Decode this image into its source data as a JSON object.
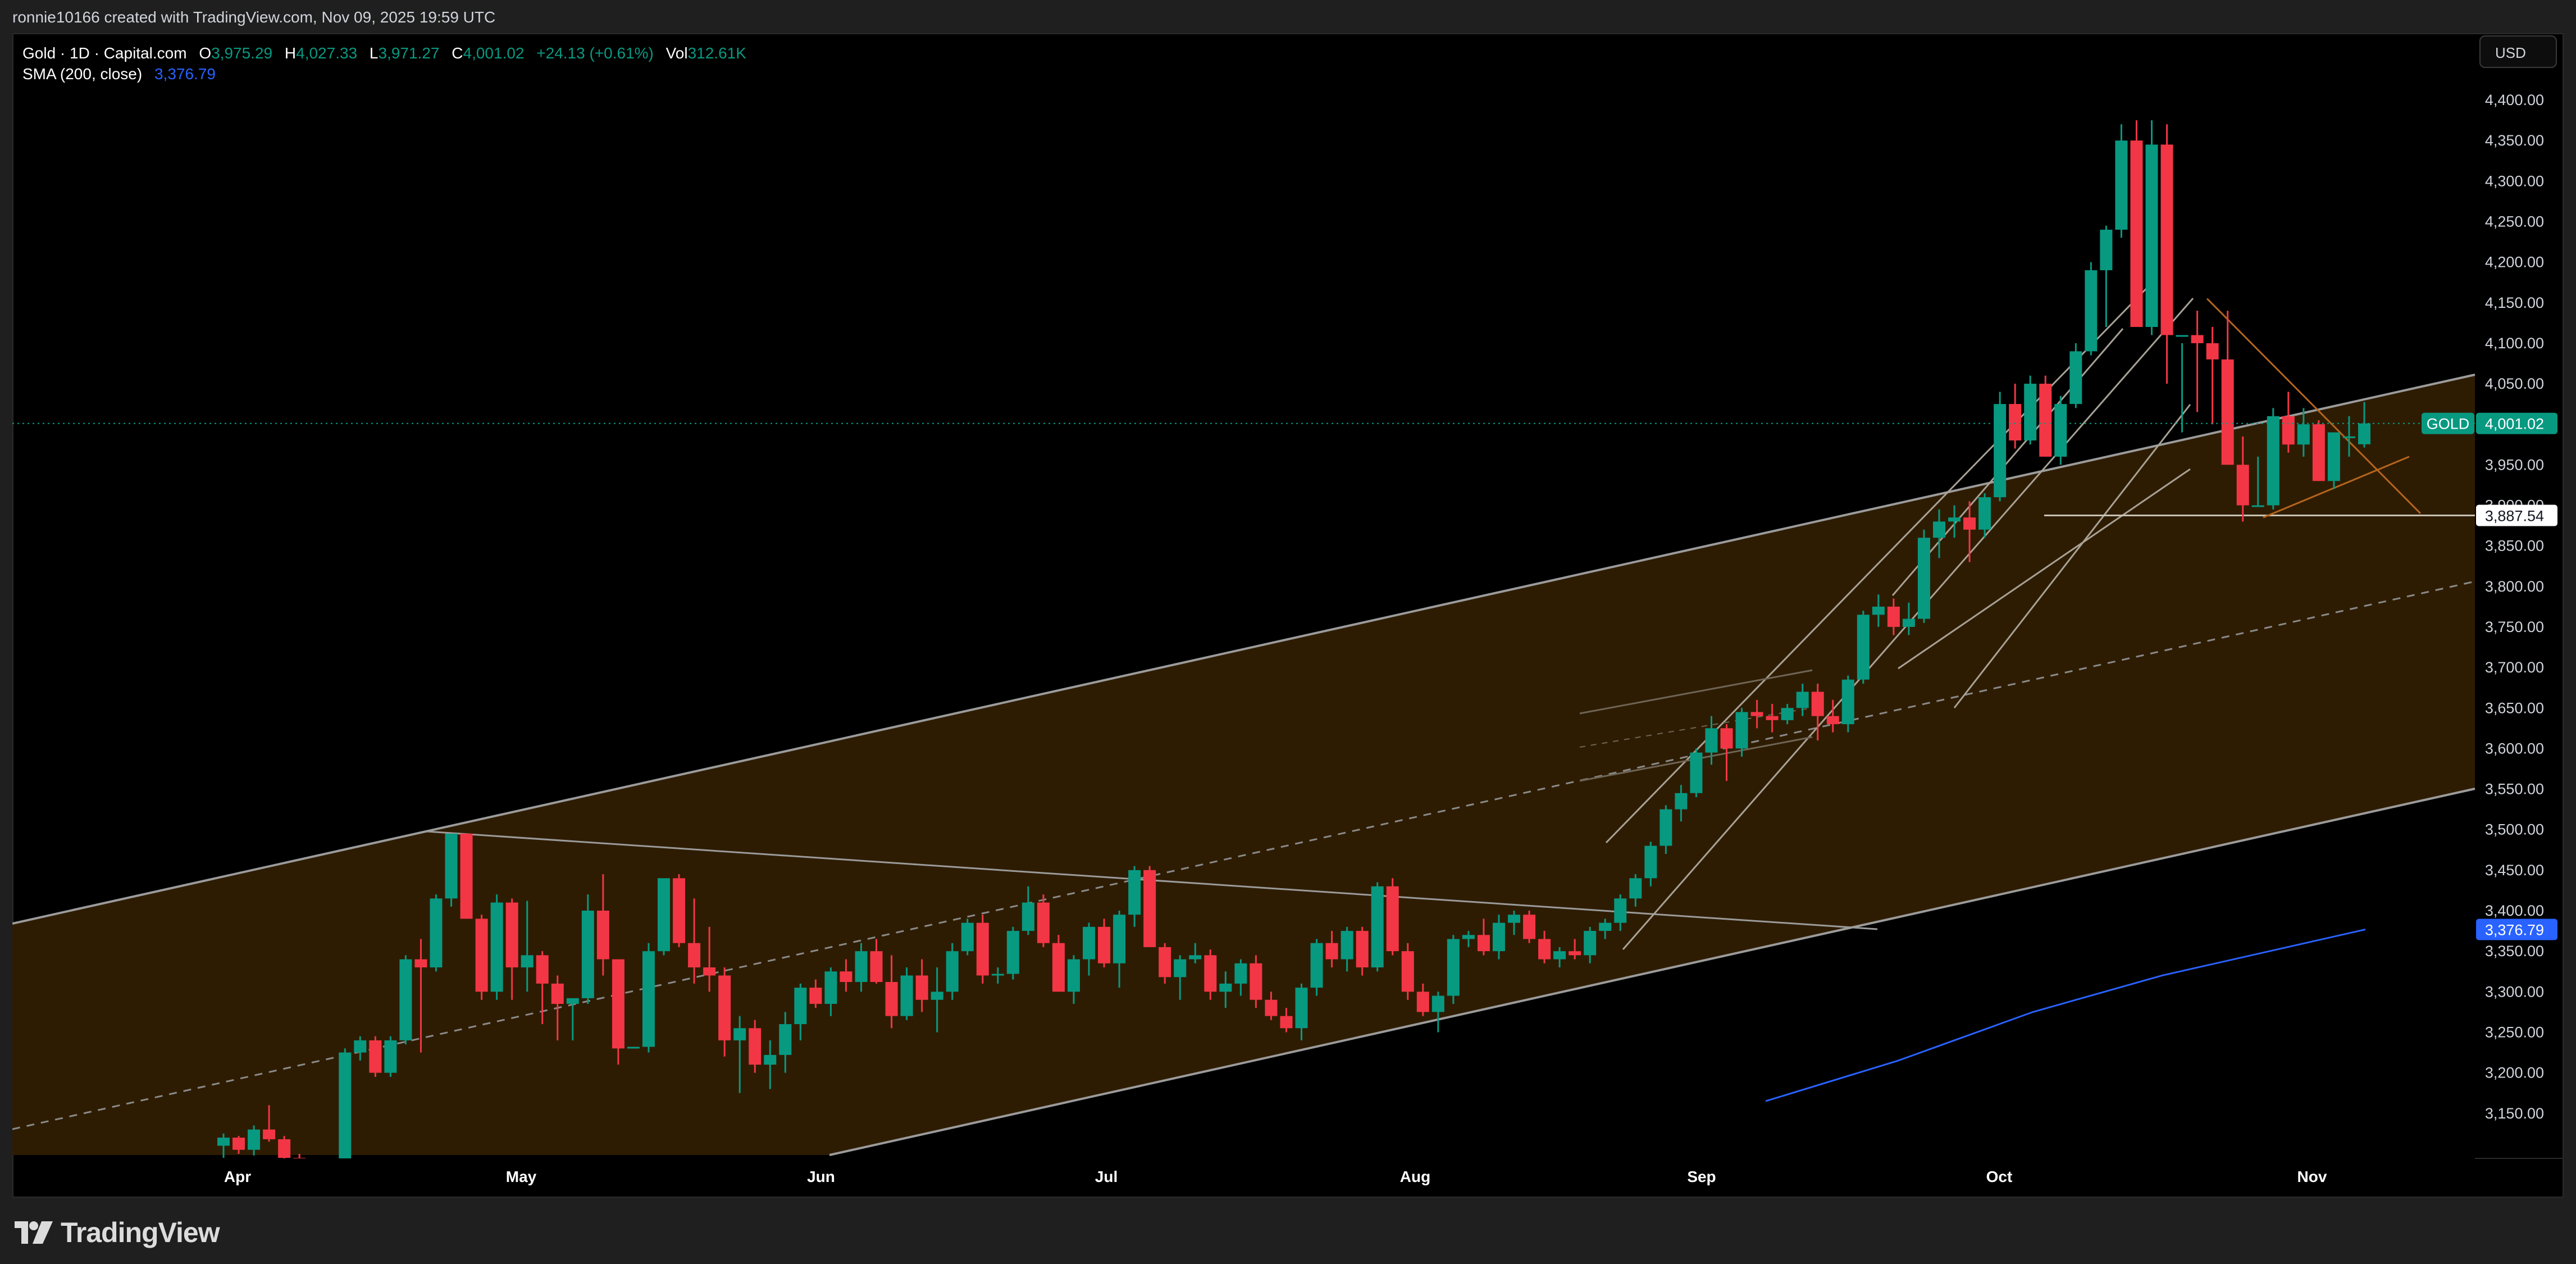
{
  "header": {
    "text": "ronnie10166 created with TradingView.com, Nov 09, 2025 19:59 UTC"
  },
  "legend": {
    "symbol": "Gold · 1D · Capital.com",
    "open_label": "O",
    "open": "3,975.29",
    "high_label": "H",
    "high": "4,027.33",
    "low_label": "L",
    "low": "3,971.27",
    "close_label": "C",
    "close": "4,001.02",
    "change": "+24.13 (+0.61%)",
    "vol_label": "Vol",
    "vol": "312.61K",
    "sma_label": "SMA (200, close)",
    "sma_value": "3,376.79"
  },
  "price_axis": {
    "currency_button": "USD",
    "ticks": [
      "4,400.00",
      "4,350.00",
      "4,300.00",
      "4,250.00",
      "4,200.00",
      "4,150.00",
      "4,100.00",
      "4,050.00",
      "3,950.00",
      "3,900.00",
      "3,850.00",
      "3,800.00",
      "3,750.00",
      "3,700.00",
      "3,650.00",
      "3,600.00",
      "3,550.00",
      "3,500.00",
      "3,450.00",
      "3,400.00",
      "3,350.00",
      "3,300.00",
      "3,250.00",
      "3,200.00",
      "3,150.00"
    ],
    "last_price_symbol": "GOLD",
    "last_price": "4,001.02",
    "marker_price": "3,887.54",
    "sma_price": "3,376.79"
  },
  "time_axis": {
    "labels": [
      "Apr",
      "May",
      "Jun",
      "Jul",
      "Aug",
      "Sep",
      "Oct",
      "Nov"
    ]
  },
  "footer": {
    "brand": "TradingView"
  },
  "colors": {
    "bull": "#089981",
    "bear": "#f23645",
    "sma": "#2962ff",
    "channel_fill": "#2e1c02",
    "trendline": "#9b9b9b",
    "orange_line": "#b5651d",
    "background": "#000000"
  },
  "chart_data": {
    "type": "candlestick",
    "title": "Gold · 1D · Capital.com",
    "xlabel": "",
    "ylabel": "USD",
    "ylim": [
      3100,
      4420
    ],
    "x_ticks": [
      "Apr",
      "May",
      "Jun",
      "Jul",
      "Aug",
      "Sep",
      "Oct",
      "Nov"
    ],
    "y_ticks": [
      3150,
      3200,
      3250,
      3300,
      3350,
      3400,
      3450,
      3500,
      3550,
      3600,
      3650,
      3700,
      3750,
      3800,
      3850,
      3900,
      3950,
      4000,
      4050,
      4100,
      4150,
      4200,
      4250,
      4300,
      4350,
      4400
    ],
    "last": {
      "open": 3975.29,
      "high": 4027.33,
      "low": 3971.27,
      "close": 4001.02,
      "change": 24.13,
      "change_pct": 0.61,
      "volume": "312.61K"
    },
    "sma_200_last": 3376.79,
    "horizontal_level": 3887.54,
    "ohlc": [
      [
        3110,
        3125,
        3095,
        3120
      ],
      [
        3120,
        3122,
        3100,
        3105
      ],
      [
        3105,
        3135,
        3098,
        3130
      ],
      [
        3130,
        3160,
        3115,
        3118
      ],
      [
        3118,
        3122,
        3090,
        3095
      ],
      [
        3095,
        3100,
        3060,
        3080
      ],
      [
        3080,
        3085,
        3020,
        3040
      ],
      [
        3040,
        3060,
        3000,
        3050
      ],
      [
        3050,
        3230,
        3040,
        3225
      ],
      [
        3225,
        3245,
        3215,
        3240
      ],
      [
        3240,
        3245,
        3195,
        3200
      ],
      [
        3200,
        3245,
        3195,
        3240
      ],
      [
        3240,
        3345,
        3235,
        3340
      ],
      [
        3340,
        3365,
        3225,
        3330
      ],
      [
        3330,
        3420,
        3325,
        3415
      ],
      [
        3415,
        3490,
        3405,
        3495
      ],
      [
        3495,
        3490,
        3390,
        3390
      ],
      [
        3390,
        3395,
        3290,
        3300
      ],
      [
        3300,
        3420,
        3290,
        3410
      ],
      [
        3410,
        3415,
        3290,
        3330
      ],
      [
        3330,
        3412,
        3300,
        3345
      ],
      [
        3345,
        3350,
        3260,
        3310
      ],
      [
        3310,
        3320,
        3240,
        3285
      ],
      [
        3285,
        3290,
        3240,
        3292
      ],
      [
        3292,
        3420,
        3285,
        3400
      ],
      [
        3400,
        3445,
        3320,
        3340
      ],
      [
        3340,
        3320,
        3210,
        3230
      ],
      [
        3230,
        3230,
        3230,
        3232
      ],
      [
        3232,
        3360,
        3225,
        3350
      ],
      [
        3350,
        3420,
        3345,
        3440
      ],
      [
        3440,
        3445,
        3355,
        3360
      ],
      [
        3360,
        3415,
        3310,
        3330
      ],
      [
        3330,
        3380,
        3300,
        3320
      ],
      [
        3320,
        3330,
        3220,
        3240
      ],
      [
        3240,
        3270,
        3175,
        3255
      ],
      [
        3255,
        3265,
        3200,
        3210
      ],
      [
        3210,
        3240,
        3180,
        3222
      ],
      [
        3222,
        3275,
        3200,
        3260
      ],
      [
        3260,
        3310,
        3240,
        3305
      ],
      [
        3305,
        3315,
        3280,
        3285
      ],
      [
        3285,
        3330,
        3270,
        3325
      ],
      [
        3325,
        3340,
        3300,
        3312
      ],
      [
        3312,
        3360,
        3300,
        3350
      ],
      [
        3350,
        3365,
        3310,
        3312
      ],
      [
        3312,
        3345,
        3255,
        3270
      ],
      [
        3270,
        3330,
        3265,
        3320
      ],
      [
        3320,
        3340,
        3275,
        3290
      ],
      [
        3290,
        3330,
        3250,
        3300
      ],
      [
        3300,
        3360,
        3290,
        3350
      ],
      [
        3350,
        3390,
        3345,
        3385
      ],
      [
        3385,
        3395,
        3310,
        3320
      ],
      [
        3320,
        3330,
        3310,
        3322
      ],
      [
        3322,
        3380,
        3315,
        3375
      ],
      [
        3375,
        3430,
        3370,
        3410
      ],
      [
        3410,
        3420,
        3355,
        3360
      ],
      [
        3360,
        3370,
        3300,
        3300
      ],
      [
        3300,
        3345,
        3285,
        3340
      ],
      [
        3340,
        3385,
        3320,
        3380
      ],
      [
        3380,
        3390,
        3330,
        3335
      ],
      [
        3335,
        3400,
        3305,
        3395
      ],
      [
        3395,
        3455,
        3380,
        3450
      ],
      [
        3450,
        3455,
        3360,
        3355
      ],
      [
        3355,
        3360,
        3310,
        3318
      ],
      [
        3318,
        3345,
        3290,
        3340
      ],
      [
        3340,
        3360,
        3335,
        3345
      ],
      [
        3345,
        3352,
        3290,
        3300
      ],
      [
        3300,
        3325,
        3280,
        3310
      ],
      [
        3310,
        3340,
        3295,
        3335
      ],
      [
        3335,
        3345,
        3280,
        3290
      ],
      [
        3290,
        3300,
        3265,
        3270
      ],
      [
        3270,
        3280,
        3250,
        3255
      ],
      [
        3255,
        3310,
        3240,
        3305
      ],
      [
        3305,
        3365,
        3295,
        3360
      ],
      [
        3360,
        3375,
        3330,
        3340
      ],
      [
        3340,
        3380,
        3325,
        3375
      ],
      [
        3375,
        3380,
        3320,
        3330
      ],
      [
        3330,
        3435,
        3325,
        3430
      ],
      [
        3430,
        3440,
        3345,
        3350
      ],
      [
        3350,
        3360,
        3290,
        3300
      ],
      [
        3300,
        3310,
        3270,
        3275
      ],
      [
        3275,
        3300,
        3250,
        3295
      ],
      [
        3295,
        3370,
        3285,
        3365
      ],
      [
        3365,
        3375,
        3355,
        3370
      ],
      [
        3370,
        3390,
        3345,
        3350
      ],
      [
        3350,
        3395,
        3340,
        3385
      ],
      [
        3385,
        3400,
        3370,
        3395
      ],
      [
        3395,
        3400,
        3360,
        3365
      ],
      [
        3365,
        3375,
        3335,
        3340
      ],
      [
        3340,
        3355,
        3330,
        3350
      ],
      [
        3350,
        3365,
        3340,
        3345
      ],
      [
        3345,
        3380,
        3335,
        3375
      ],
      [
        3375,
        3390,
        3365,
        3385
      ],
      [
        3385,
        3420,
        3375,
        3415
      ],
      [
        3415,
        3445,
        3405,
        3440
      ],
      [
        3440,
        3485,
        3430,
        3480
      ],
      [
        3480,
        3530,
        3470,
        3525
      ],
      [
        3525,
        3555,
        3510,
        3545
      ],
      [
        3545,
        3600,
        3540,
        3595
      ],
      [
        3595,
        3640,
        3580,
        3625
      ],
      [
        3625,
        3630,
        3560,
        3600
      ],
      [
        3600,
        3650,
        3590,
        3645
      ],
      [
        3645,
        3660,
        3625,
        3640
      ],
      [
        3640,
        3655,
        3620,
        3635
      ],
      [
        3635,
        3655,
        3630,
        3650
      ],
      [
        3650,
        3680,
        3640,
        3670
      ],
      [
        3670,
        3680,
        3610,
        3640
      ],
      [
        3640,
        3660,
        3620,
        3630
      ],
      [
        3630,
        3690,
        3620,
        3685
      ],
      [
        3685,
        3770,
        3680,
        3765
      ],
      [
        3765,
        3790,
        3750,
        3775
      ],
      [
        3775,
        3785,
        3740,
        3750
      ],
      [
        3750,
        3780,
        3740,
        3760
      ],
      [
        3760,
        3870,
        3755,
        3860
      ],
      [
        3860,
        3895,
        3835,
        3880
      ],
      [
        3880,
        3900,
        3860,
        3885
      ],
      [
        3885,
        3905,
        3830,
        3870
      ],
      [
        3870,
        3915,
        3860,
        3910
      ],
      [
        3910,
        4040,
        3905,
        4025
      ],
      [
        4025,
        4050,
        3970,
        3980
      ],
      [
        3980,
        4060,
        3975,
        4050
      ],
      [
        4050,
        4060,
        3960,
        3960
      ],
      [
        3960,
        4035,
        3950,
        4025
      ],
      [
        4025,
        4100,
        4020,
        4090
      ],
      [
        4090,
        4200,
        4085,
        4190
      ],
      [
        4190,
        4245,
        4120,
        4240
      ],
      [
        4240,
        4370,
        4230,
        4350
      ],
      [
        4350,
        4375,
        4150,
        4120
      ],
      [
        4120,
        4375,
        4110,
        4345
      ],
      [
        4345,
        4370,
        4050,
        4110
      ],
      [
        4110,
        4100,
        3990,
        4110
      ],
      [
        4110,
        4140,
        4015,
        4100
      ],
      [
        4100,
        4120,
        4000,
        4080
      ],
      [
        4080,
        4140,
        3980,
        3950
      ],
      [
        3950,
        3985,
        3880,
        3900
      ],
      [
        3900,
        3960,
        3900,
        3900
      ],
      [
        3900,
        4020,
        3895,
        4010
      ],
      [
        4010,
        4040,
        3965,
        3975
      ],
      [
        3975,
        4020,
        3960,
        4000
      ],
      [
        4000,
        4005,
        3930,
        3930
      ],
      [
        3930,
        3990,
        3920,
        3990
      ],
      [
        3985,
        4010,
        3960,
        3985
      ],
      [
        3975.29,
        4027.33,
        3971.27,
        4001.02
      ]
    ],
    "sma_200": [
      {
        "x": 3144,
        "y": 3165
      },
      {
        "x": 3380,
        "y": 3215
      },
      {
        "x": 3620,
        "y": 3275
      },
      {
        "x": 3850,
        "y": 3320
      },
      {
        "x": 4212,
        "y": 3376.79
      }
    ]
  }
}
